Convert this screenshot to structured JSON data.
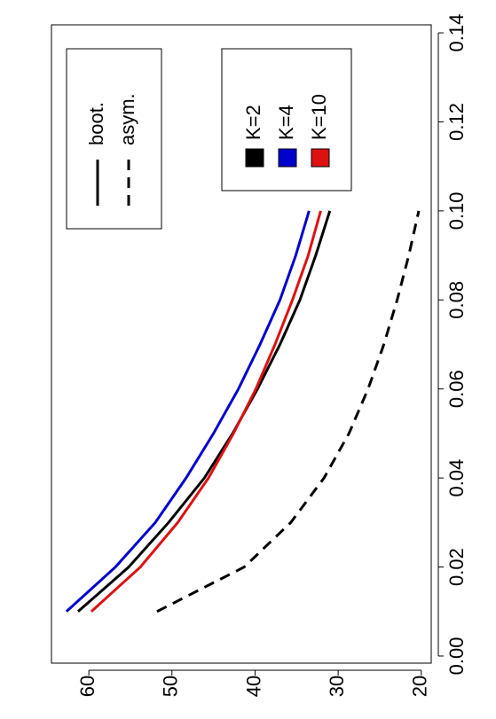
{
  "chart_data": {
    "type": "line",
    "x": [
      0.01,
      0.02,
      0.03,
      0.04,
      0.05,
      0.06,
      0.07,
      0.08,
      0.09,
      0.1
    ],
    "series": [
      {
        "name": "K=2",
        "color": "#000000",
        "dashed": false,
        "values": [
          61.3,
          55.2,
          50.4,
          46.1,
          42.7,
          39.7,
          37.0,
          34.6,
          32.7,
          31.0
        ]
      },
      {
        "name": "K=4",
        "color": "#0000cc",
        "dashed": false,
        "values": [
          62.7,
          56.8,
          52.0,
          48.3,
          45.0,
          42.0,
          39.4,
          37.0,
          35.1,
          33.5
        ]
      },
      {
        "name": "K=10",
        "color": "#dd1111",
        "dashed": false,
        "values": [
          59.7,
          53.8,
          49.3,
          45.6,
          42.6,
          39.9,
          37.6,
          35.5,
          33.6,
          32.1
        ]
      },
      {
        "color": "#000000",
        "dashed": true,
        "values": [
          51.8,
          41.3,
          35.7,
          31.7,
          28.7,
          26.4,
          24.5,
          22.9,
          21.5,
          20.3
        ]
      }
    ],
    "line_legend": [
      {
        "label": "boot.",
        "dashed": false
      },
      {
        "label": "asym.",
        "dashed": true
      }
    ],
    "xlim": [
      -0.0016,
      0.1418
    ],
    "xticks": [
      {
        "value": 0,
        "label": "0.00"
      },
      0.02,
      0.04,
      0.06,
      0.08,
      {
        "value": 0.1,
        "label": "0.10"
      },
      0.12,
      0.14
    ],
    "ylim": [
      18.8,
      64.5
    ],
    "yticks": [
      20,
      30,
      40,
      50,
      60
    ]
  }
}
